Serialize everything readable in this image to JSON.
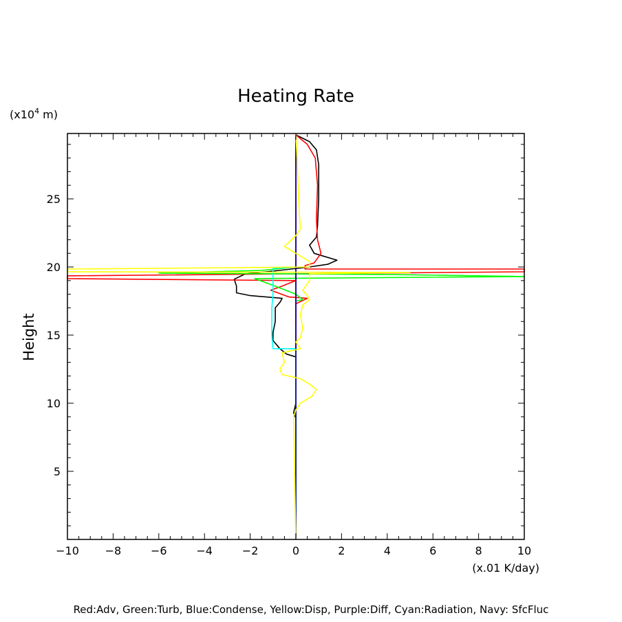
{
  "chart_data": {
    "type": "line",
    "title": "Heating Rate",
    "ylabel": "Height",
    "xunit": "(x.01 K/day)",
    "yunit_prefix": "(x10",
    "yunit_exp": "4",
    "yunit_suffix": " m)",
    "footer": "Red:Adv, Green:Turb, Blue:Condense, Yellow:Disp, Purple:Diff, Cyan:Radiation, Navy: SfcFluc",
    "xlim": [
      -10,
      10
    ],
    "ylim": [
      0,
      29.8
    ],
    "xticks": [
      -10,
      -8,
      -6,
      -4,
      -2,
      0,
      2,
      4,
      6,
      8,
      10
    ],
    "xtick_labels": [
      "−10",
      "−8",
      "−6",
      "−4",
      "−2",
      "0",
      "2",
      "4",
      "6",
      "8",
      "10"
    ],
    "yticks": [
      5,
      10,
      15,
      20,
      25
    ],
    "ytick_labels": [
      "5",
      "10",
      "15",
      "20",
      "25"
    ],
    "grid": false,
    "series": [
      {
        "color": "#000000",
        "points": [
          [
            0,
            29.7
          ],
          [
            0.6,
            29.2
          ],
          [
            0.9,
            28.6
          ],
          [
            1.0,
            27.5
          ],
          [
            1.0,
            25
          ],
          [
            0.95,
            23
          ],
          [
            0.9,
            22.2
          ],
          [
            0.6,
            21.6
          ],
          [
            0.8,
            21.0
          ],
          [
            1.2,
            20.8
          ],
          [
            1.8,
            20.5
          ],
          [
            1.4,
            20.2
          ],
          [
            0.6,
            20.0
          ],
          [
            -1.0,
            19.7
          ],
          [
            -2.2,
            19.5
          ],
          [
            -2.7,
            19.1
          ],
          [
            -2.6,
            18.6
          ],
          [
            -2.6,
            18.1
          ],
          [
            -2.0,
            17.9
          ],
          [
            -0.6,
            17.7
          ],
          [
            -0.7,
            17.4
          ],
          [
            -0.9,
            17.0
          ],
          [
            -0.9,
            16.0
          ],
          [
            -1.0,
            15.2
          ],
          [
            -1.0,
            14.6
          ],
          [
            -0.7,
            14.0
          ],
          [
            -0.4,
            13.6
          ],
          [
            0,
            13.4
          ],
          [
            0,
            10
          ],
          [
            -0.1,
            9.3
          ],
          [
            0,
            8.9
          ],
          [
            0,
            0
          ]
        ]
      },
      {
        "color": "#ff0000",
        "points": [
          [
            0,
            29.7
          ],
          [
            0.5,
            29.0
          ],
          [
            0.85,
            28.0
          ],
          [
            0.95,
            26.0
          ],
          [
            0.9,
            23.5
          ],
          [
            0.95,
            22.0
          ],
          [
            1.1,
            21.0
          ],
          [
            0.8,
            20.3
          ],
          [
            0.4,
            20.1
          ],
          [
            0.4,
            19.85
          ],
          [
            10,
            19.85
          ],
          [
            10,
            19.65
          ],
          [
            -10,
            19.35
          ],
          [
            -10,
            19.15
          ],
          [
            0,
            19.0
          ],
          [
            -0.6,
            18.6
          ],
          [
            -1.1,
            18.3
          ],
          [
            -0.3,
            17.8
          ],
          [
            0.5,
            17.7
          ],
          [
            0,
            17.3
          ],
          [
            0,
            9.0
          ],
          [
            0,
            0
          ]
        ]
      },
      {
        "color": "#00ff00",
        "points": [
          [
            0,
            20.0
          ],
          [
            -1.5,
            19.75
          ],
          [
            -6,
            19.55
          ],
          [
            4,
            19.45
          ],
          [
            10,
            19.3
          ],
          [
            -1.8,
            19.15
          ],
          [
            -0.6,
            18.4
          ],
          [
            0,
            18.0
          ],
          [
            0.3,
            17.6
          ],
          [
            0,
            17.5
          ],
          [
            0,
            0
          ]
        ]
      },
      {
        "color": "#0000ff",
        "points": [
          [
            0,
            29.7
          ],
          [
            0,
            0
          ]
        ]
      },
      {
        "color": "#ff00ff",
        "points": [
          [
            0,
            29.7
          ],
          [
            0,
            0
          ]
        ]
      },
      {
        "color": "#00ffff",
        "points": [
          [
            0,
            20.0
          ],
          [
            -1.0,
            19.9
          ],
          [
            -1.0,
            18.0
          ],
          [
            -1.05,
            17.0
          ],
          [
            -1.05,
            15.0
          ],
          [
            -1.0,
            14.0
          ],
          [
            -0.2,
            14.0
          ],
          [
            0,
            14.0
          ],
          [
            0,
            0
          ]
        ]
      },
      {
        "color": "#000080",
        "points": [
          [
            0,
            29.7
          ],
          [
            0,
            0
          ]
        ]
      },
      {
        "color": "#ffff00",
        "points": [
          [
            0,
            29.7
          ],
          [
            0.05,
            28
          ],
          [
            0.1,
            26
          ],
          [
            0.15,
            24
          ],
          [
            0.2,
            22.8
          ],
          [
            0.0,
            22.3
          ],
          [
            -0.5,
            21.5
          ],
          [
            0.2,
            20.8
          ],
          [
            0.6,
            20.4
          ],
          [
            0.6,
            20.0
          ],
          [
            -2.5,
            19.95
          ],
          [
            -10,
            19.85
          ],
          [
            -10,
            19.65
          ],
          [
            5,
            19.6
          ],
          [
            0.6,
            19.5
          ],
          [
            0.6,
            19.0
          ],
          [
            0.3,
            18.3
          ],
          [
            0.5,
            17.9
          ],
          [
            0.6,
            17.6
          ],
          [
            0.3,
            17.2
          ],
          [
            0.2,
            16.5
          ],
          [
            0.3,
            15.5
          ],
          [
            0.2,
            14.8
          ],
          [
            0.0,
            14.5
          ],
          [
            0.2,
            14.0
          ],
          [
            -0.6,
            13.7
          ],
          [
            -0.5,
            13.0
          ],
          [
            -0.7,
            12.5
          ],
          [
            -0.6,
            12.1
          ],
          [
            0.2,
            11.8
          ],
          [
            0.6,
            11.4
          ],
          [
            0.9,
            11.0
          ],
          [
            0.7,
            10.5
          ],
          [
            0.2,
            10.0
          ],
          [
            0.0,
            9.5
          ],
          [
            -0.1,
            9.0
          ],
          [
            0,
            0
          ]
        ]
      }
    ]
  }
}
